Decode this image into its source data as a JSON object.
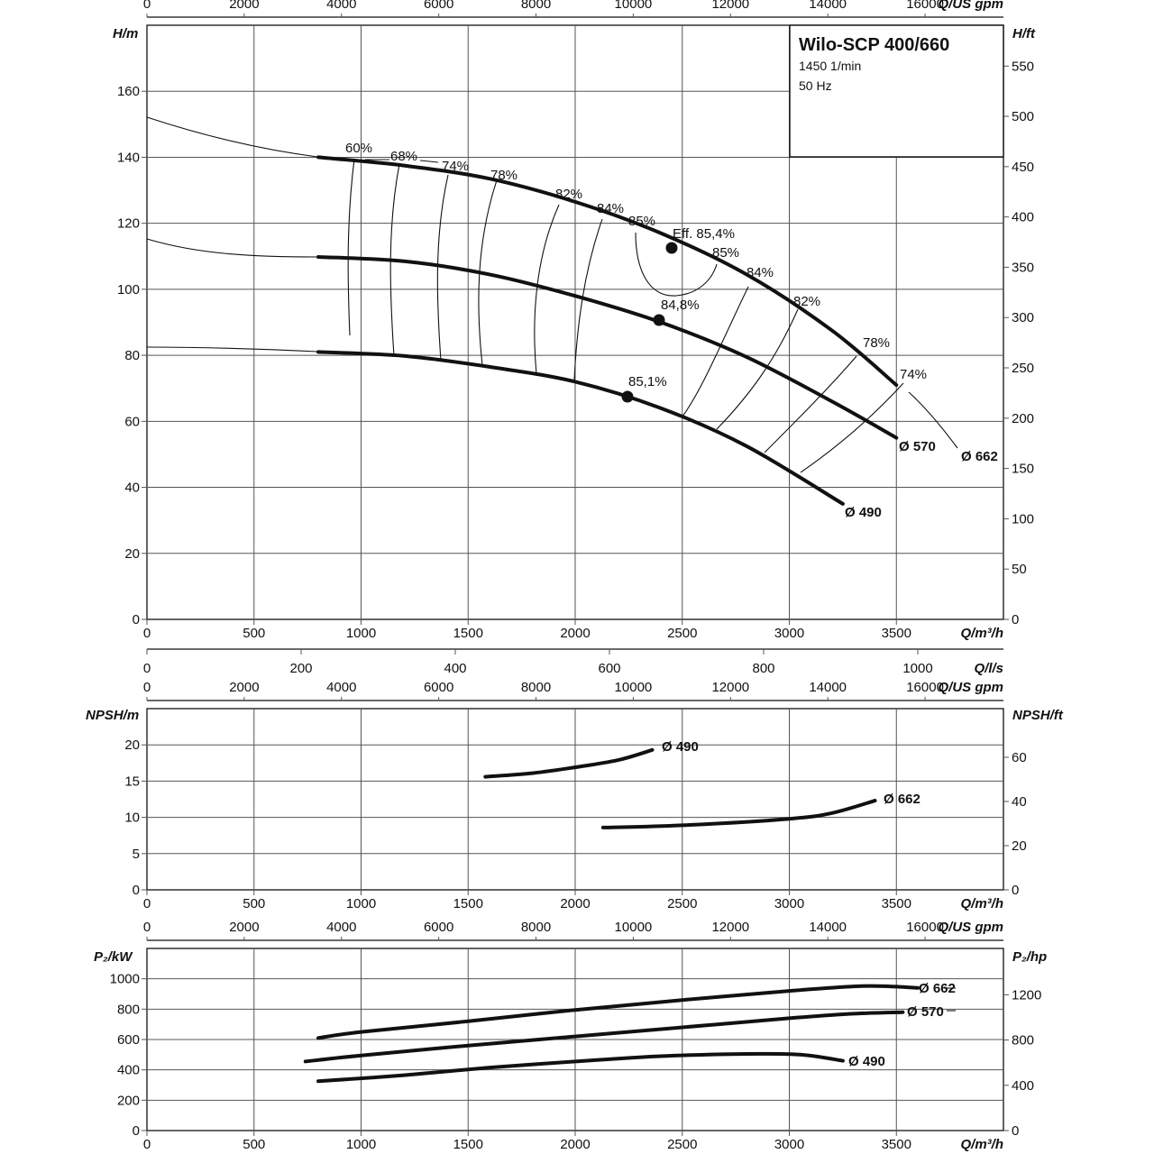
{
  "chart_data": [
    {
      "type": "line",
      "panel": "head",
      "title": "Wilo-SCP 400/660",
      "subtitle_lines": [
        "1450 1/min",
        "50 Hz"
      ],
      "xlabel": "Q/m³/h",
      "xlabel_top": "Q/US gpm",
      "xlabel_ls": "Q/l/s",
      "ylabel": "H/m",
      "ylabel_right": "H/ft",
      "xlim": [
        0,
        4000
      ],
      "ylim": [
        0,
        180
      ],
      "x_ticks": [
        "0",
        "500",
        "1000",
        "1500",
        "2000",
        "2500",
        "3000",
        "3500"
      ],
      "x_ticks_gpm": [
        "0",
        "2000",
        "4000",
        "6000",
        "8000",
        "10000",
        "12000",
        "14000",
        "16000"
      ],
      "x_ticks_ls": [
        "0",
        "200",
        "400",
        "600",
        "800",
        "1000"
      ],
      "y_ticks": [
        "0",
        "20",
        "40",
        "60",
        "80",
        "100",
        "120",
        "140",
        "160"
      ],
      "y_ticks_ft": [
        "0",
        "50",
        "100",
        "150",
        "200",
        "250",
        "300",
        "350",
        "400",
        "450",
        "500",
        "550"
      ],
      "series": [
        {
          "name": "Ø 662",
          "x": [
            800,
            1200,
            1600,
            2000,
            2400,
            2800,
            3200,
            3500
          ],
          "y": [
            140,
            137.5,
            133.5,
            126.5,
            117,
            104.5,
            87.5,
            71
          ]
        },
        {
          "name": "Ø 570",
          "x": [
            800,
            1200,
            1600,
            2000,
            2400,
            2800,
            3200,
            3500
          ],
          "y": [
            109.8,
            108.5,
            104.5,
            98,
            90,
            79.5,
            66,
            55
          ]
        },
        {
          "name": "Ø 490",
          "x": [
            800,
            1200,
            1600,
            2000,
            2400,
            2800,
            3250
          ],
          "y": [
            81,
            79.8,
            76.5,
            72,
            64,
            52.5,
            35
          ]
        }
      ],
      "curve_labels": [
        "Ø 662",
        "Ø 570",
        "Ø 490"
      ],
      "annotations": {
        "efficiency": [
          "60%",
          "68%",
          "74%",
          "78%",
          "82%",
          "84%",
          "85%",
          "85%",
          "84%",
          "82%",
          "78%",
          "74%"
        ],
        "best_efficiency": [
          "Eff. 85,4%",
          "84,8%",
          "85,1%"
        ]
      }
    },
    {
      "type": "line",
      "panel": "npsh",
      "xlabel": "Q/m³/h",
      "xlabel_top": "Q/US gpm",
      "ylabel": "NPSH/m",
      "ylabel_right": "NPSH/ft",
      "xlim": [
        0,
        4000
      ],
      "ylim": [
        0,
        25
      ],
      "x_ticks": [
        "0",
        "500",
        "1000",
        "1500",
        "2000",
        "2500",
        "3000",
        "3500"
      ],
      "x_ticks_gpm": [
        "0",
        "2000",
        "4000",
        "6000",
        "8000",
        "10000",
        "12000",
        "14000",
        "16000"
      ],
      "y_ticks": [
        "0",
        "5",
        "10",
        "15",
        "20"
      ],
      "y_ticks_ft": [
        "0",
        "20",
        "40",
        "60"
      ],
      "series": [
        {
          "name": "Ø 490",
          "x": [
            1580,
            1800,
            2000,
            2200,
            2360
          ],
          "y": [
            15.6,
            16.1,
            16.9,
            17.9,
            19.3
          ]
        },
        {
          "name": "Ø 662",
          "x": [
            2130,
            2500,
            3000,
            3200,
            3400
          ],
          "y": [
            8.6,
            8.9,
            9.8,
            10.6,
            12.3
          ]
        }
      ],
      "curve_labels": [
        "Ø 490",
        "Ø 662"
      ]
    },
    {
      "type": "line",
      "panel": "power",
      "xlabel": "Q/m³/h",
      "xlabel_top": "Q/US gpm",
      "ylabel": "P₂/kW",
      "ylabel_right": "P₂/hp",
      "xlim": [
        0,
        4000
      ],
      "ylim": [
        0,
        1200
      ],
      "x_ticks": [
        "0",
        "500",
        "1000",
        "1500",
        "2000",
        "2500",
        "3000",
        "3500"
      ],
      "x_ticks_gpm": [
        "0",
        "2000",
        "4000",
        "6000",
        "8000",
        "10000",
        "12000",
        "14000",
        "16000"
      ],
      "y_ticks": [
        "0",
        "200",
        "400",
        "600",
        "800",
        "1000"
      ],
      "y_ticks_hp": [
        "0",
        "400",
        "800",
        "1200"
      ],
      "series": [
        {
          "name": "Ø 662",
          "x": [
            800,
            1000,
            1500,
            2000,
            2500,
            3000,
            3300,
            3470,
            3600
          ],
          "y": [
            610,
            650,
            720,
            795,
            860,
            920,
            950,
            950,
            940
          ]
        },
        {
          "name": "Ø 570",
          "x": [
            740,
            1000,
            1500,
            2000,
            2500,
            3000,
            3300,
            3530
          ],
          "y": [
            455,
            495,
            560,
            620,
            680,
            740,
            770,
            780
          ]
        },
        {
          "name": "Ø 490",
          "x": [
            800,
            1200,
            1600,
            2000,
            2400,
            2800,
            3050,
            3250
          ],
          "y": [
            325,
            365,
            415,
            455,
            490,
            505,
            500,
            460
          ]
        }
      ],
      "curve_labels": [
        "Ø 662",
        "Ø 570",
        "Ø 490"
      ]
    }
  ]
}
